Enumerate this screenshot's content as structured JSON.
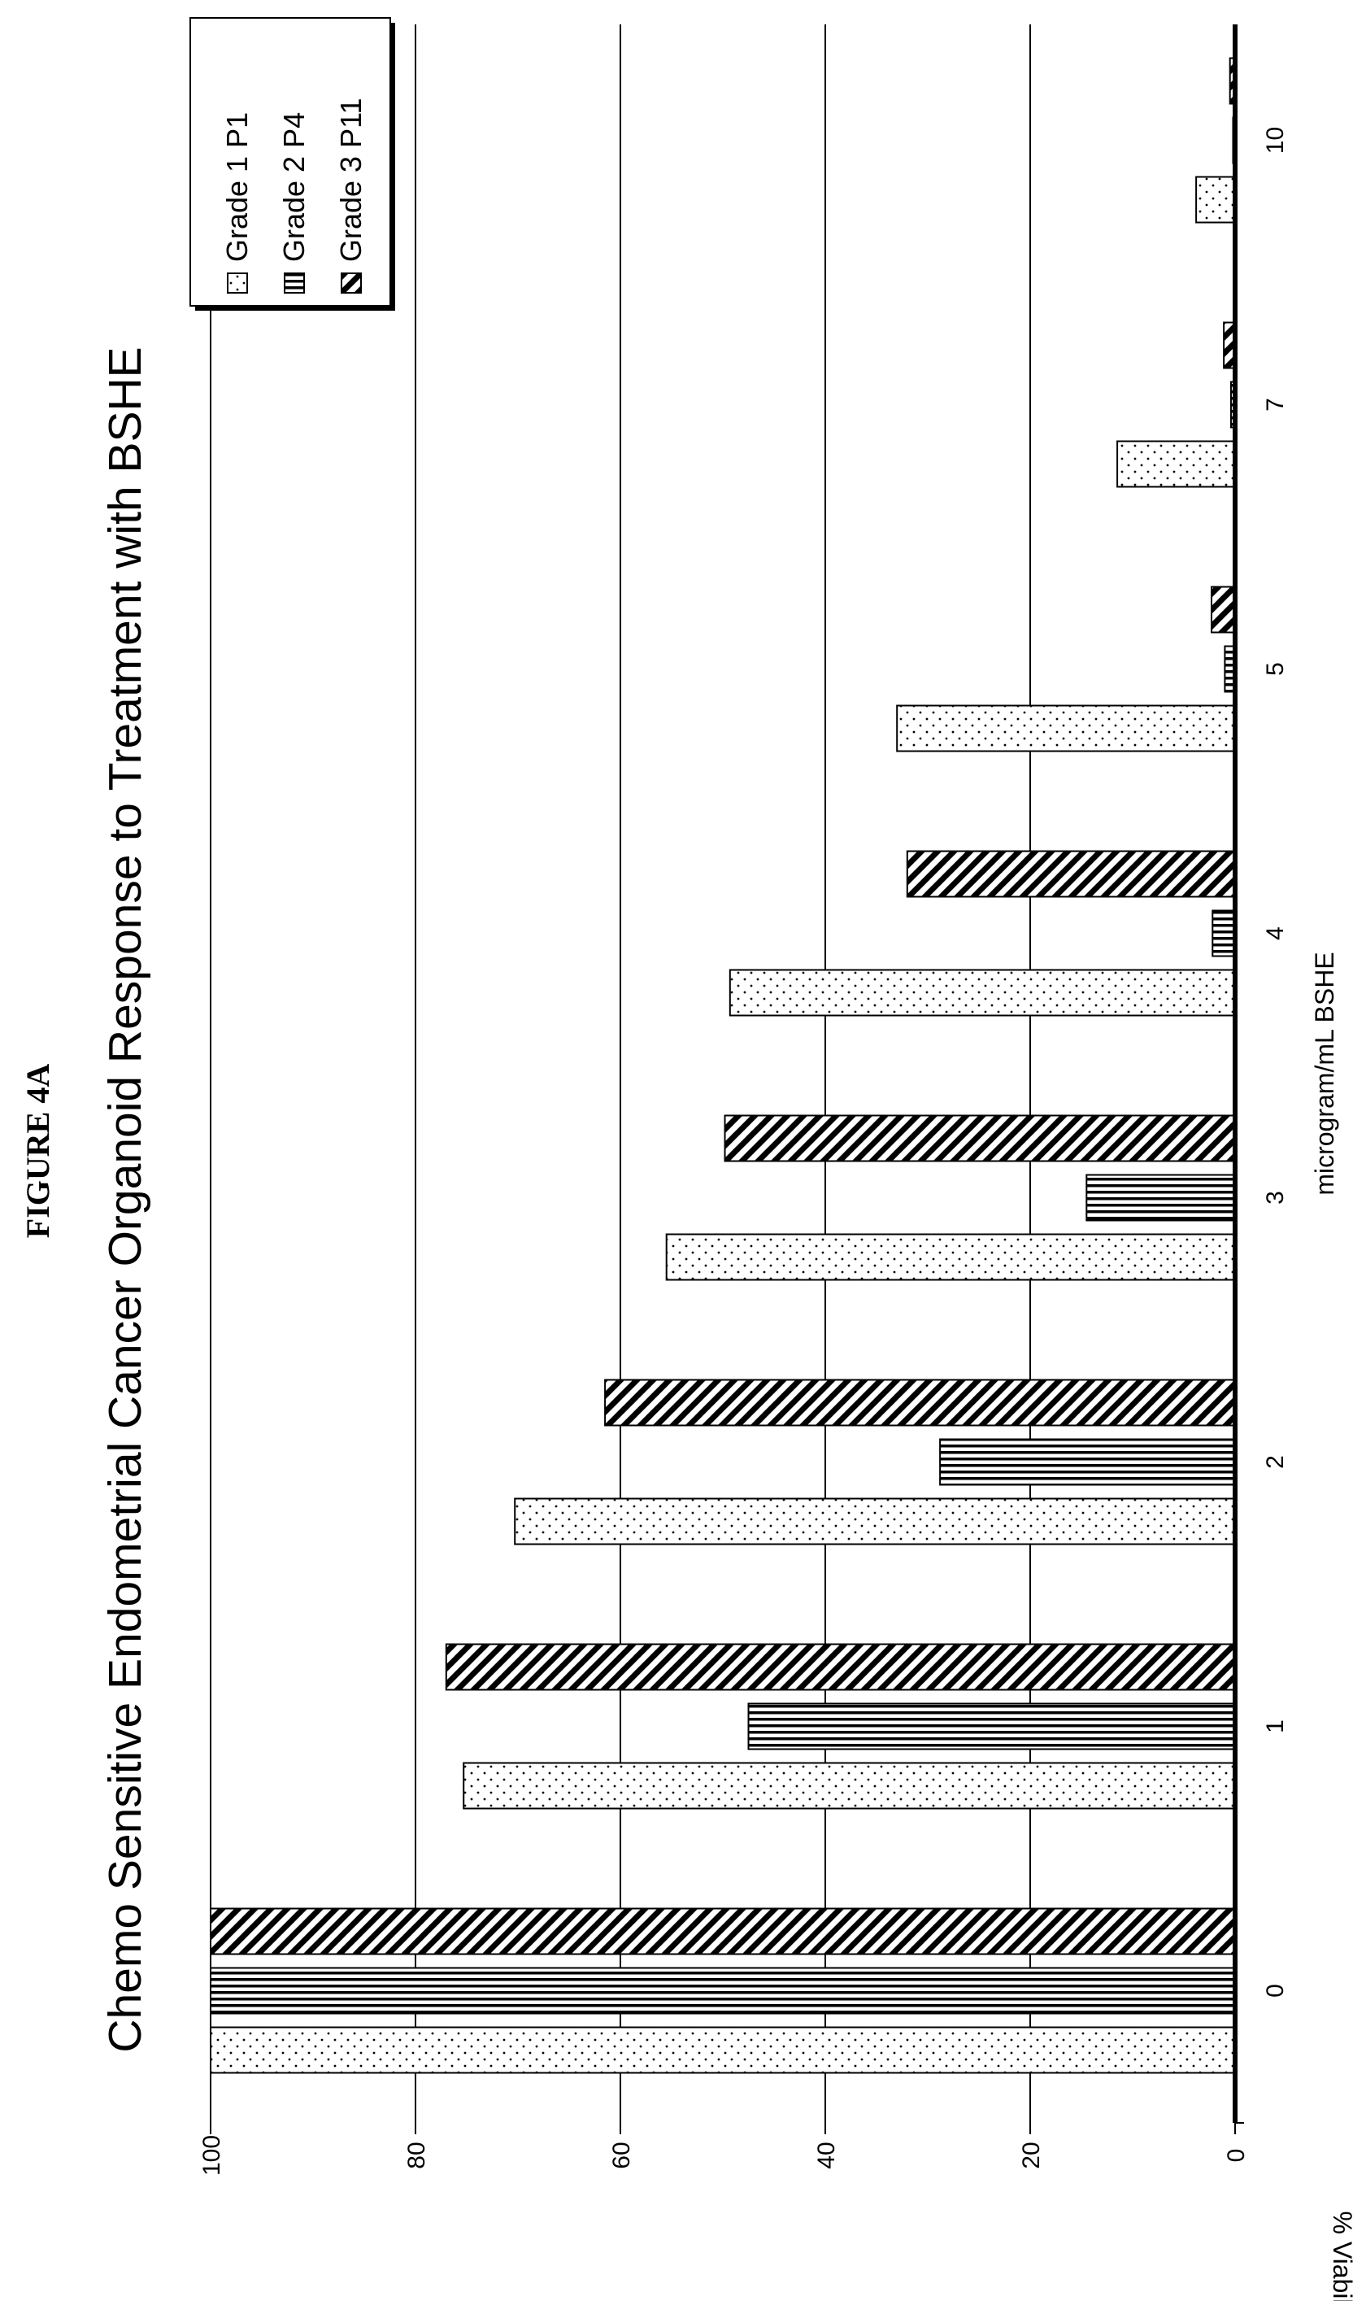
{
  "figure_label": "FIGURE 4A",
  "chart_data": {
    "type": "bar",
    "orientation": "rotated-90",
    "title": "Chemo Sensitive Endometrial Cancer Organoid Response to Treatment with BSHE",
    "xlabel": "microgram/mL BSHE",
    "ylabel": "% Viability",
    "categories": [
      "0",
      "1",
      "2",
      "3",
      "4",
      "5",
      "7",
      "10"
    ],
    "ylim": [
      0,
      100
    ],
    "yticks": [
      "0",
      "20",
      "40",
      "60",
      "80",
      "100"
    ],
    "grid": true,
    "legend_position": "top-right",
    "series": [
      {
        "name": "Grade 1 P1",
        "pattern": "dots",
        "values": [
          100,
          75.3,
          70.3,
          55.5,
          49.3,
          33,
          11.5,
          3.8
        ]
      },
      {
        "name": "Grade 2 P4",
        "pattern": "vertical-stripes",
        "values": [
          100,
          47.5,
          28.8,
          14.5,
          2.2,
          1,
          0.4,
          0.2
        ]
      },
      {
        "name": "Grade 3 P11",
        "pattern": "diagonal-stripes",
        "values": [
          100,
          77,
          61.5,
          49.8,
          32,
          2.3,
          1.1,
          0.5
        ]
      }
    ]
  }
}
